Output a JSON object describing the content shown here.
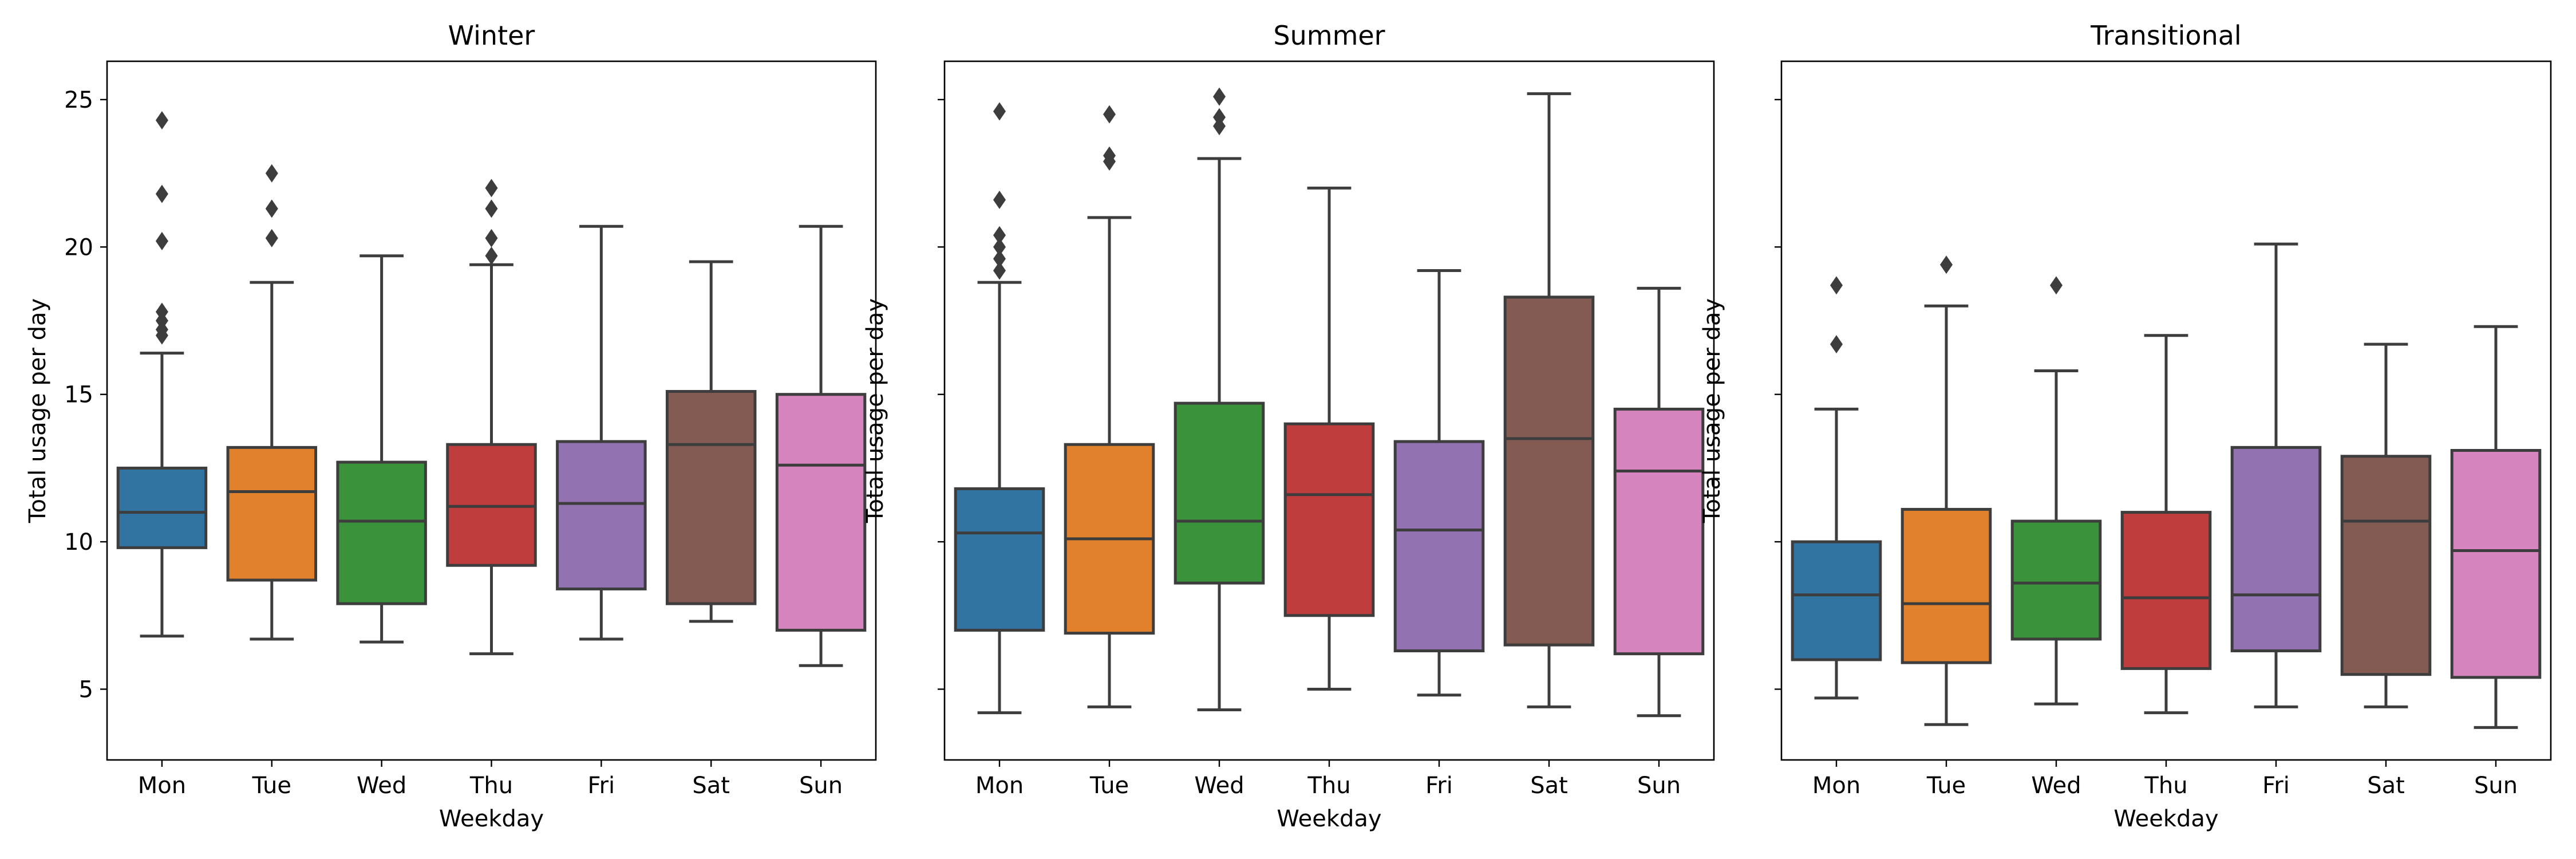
{
  "chart_data": [
    {
      "type": "box",
      "title": "Winter",
      "xlabel": "Weekday",
      "ylabel": "Total usage per day",
      "ylim": [
        2.6,
        26.3
      ],
      "yticks": [
        5,
        10,
        15,
        20,
        25
      ],
      "show_ytick_labels": true,
      "categories": [
        "Mon",
        "Tue",
        "Wed",
        "Thu",
        "Fri",
        "Sat",
        "Sun"
      ],
      "boxes": [
        {
          "min": 6.8,
          "q1": 9.8,
          "median": 11.0,
          "q3": 12.5,
          "max": 16.4,
          "fliers": [
            17.0,
            17.2,
            17.5,
            17.8,
            20.2,
            21.8,
            24.3
          ]
        },
        {
          "min": 6.7,
          "q1": 8.7,
          "median": 11.7,
          "q3": 13.2,
          "max": 18.8,
          "fliers": [
            20.3,
            21.3,
            22.5
          ]
        },
        {
          "min": 6.6,
          "q1": 7.9,
          "median": 10.7,
          "q3": 12.7,
          "max": 19.7,
          "fliers": []
        },
        {
          "min": 6.2,
          "q1": 9.2,
          "median": 11.2,
          "q3": 13.3,
          "max": 19.4,
          "fliers": [
            19.7,
            20.3,
            21.3,
            22.0
          ]
        },
        {
          "min": 6.7,
          "q1": 8.4,
          "median": 11.3,
          "q3": 13.4,
          "max": 20.7,
          "fliers": []
        },
        {
          "min": 7.3,
          "q1": 7.9,
          "median": 13.3,
          "q3": 15.1,
          "max": 19.5,
          "fliers": []
        },
        {
          "min": 5.8,
          "q1": 7.0,
          "median": 12.6,
          "q3": 15.0,
          "max": 20.7,
          "fliers": []
        }
      ]
    },
    {
      "type": "box",
      "title": "Summer",
      "xlabel": "Weekday",
      "ylabel": "Total usage per day",
      "ylim": [
        2.6,
        26.3
      ],
      "yticks": [
        5,
        10,
        15,
        20,
        25
      ],
      "show_ytick_labels": false,
      "categories": [
        "Mon",
        "Tue",
        "Wed",
        "Thu",
        "Fri",
        "Sat",
        "Sun"
      ],
      "boxes": [
        {
          "min": 4.2,
          "q1": 7.0,
          "median": 10.3,
          "q3": 11.8,
          "max": 18.8,
          "fliers": [
            19.2,
            19.6,
            20.0,
            20.4,
            21.6,
            24.6
          ]
        },
        {
          "min": 4.4,
          "q1": 6.9,
          "median": 10.1,
          "q3": 13.3,
          "max": 21.0,
          "fliers": [
            22.9,
            23.1,
            24.5
          ]
        },
        {
          "min": 4.3,
          "q1": 8.6,
          "median": 10.7,
          "q3": 14.7,
          "max": 23.0,
          "fliers": [
            24.1,
            24.4,
            25.1
          ]
        },
        {
          "min": 5.0,
          "q1": 7.5,
          "median": 11.6,
          "q3": 14.0,
          "max": 22.0,
          "fliers": []
        },
        {
          "min": 4.8,
          "q1": 6.3,
          "median": 10.4,
          "q3": 13.4,
          "max": 19.2,
          "fliers": []
        },
        {
          "min": 4.4,
          "q1": 6.5,
          "median": 13.5,
          "q3": 18.3,
          "max": 25.2,
          "fliers": []
        },
        {
          "min": 4.1,
          "q1": 6.2,
          "median": 12.4,
          "q3": 14.5,
          "max": 18.6,
          "fliers": []
        }
      ]
    },
    {
      "type": "box",
      "title": "Transitional",
      "xlabel": "Weekday",
      "ylabel": "Total usage per day",
      "ylim": [
        2.6,
        26.3
      ],
      "yticks": [
        5,
        10,
        15,
        20,
        25
      ],
      "show_ytick_labels": false,
      "categories": [
        "Mon",
        "Tue",
        "Wed",
        "Thu",
        "Fri",
        "Sat",
        "Sun"
      ],
      "boxes": [
        {
          "min": 4.7,
          "q1": 6.0,
          "median": 8.2,
          "q3": 10.0,
          "max": 14.5,
          "fliers": [
            16.7,
            18.7
          ]
        },
        {
          "min": 3.8,
          "q1": 5.9,
          "median": 7.9,
          "q3": 11.1,
          "max": 18.0,
          "fliers": [
            19.4
          ]
        },
        {
          "min": 4.5,
          "q1": 6.7,
          "median": 8.6,
          "q3": 10.7,
          "max": 15.8,
          "fliers": [
            18.7
          ]
        },
        {
          "min": 4.2,
          "q1": 5.7,
          "median": 8.1,
          "q3": 11.0,
          "max": 17.0,
          "fliers": []
        },
        {
          "min": 4.4,
          "q1": 6.3,
          "median": 8.2,
          "q3": 13.2,
          "max": 20.1,
          "fliers": []
        },
        {
          "min": 4.4,
          "q1": 5.5,
          "median": 10.7,
          "q3": 12.9,
          "max": 16.7,
          "fliers": []
        },
        {
          "min": 3.7,
          "q1": 5.4,
          "median": 9.7,
          "q3": 13.1,
          "max": 17.3,
          "fliers": []
        }
      ]
    }
  ],
  "palette": [
    "#3274a1",
    "#e1812c",
    "#3a923a",
    "#c03d3e",
    "#9372b2",
    "#845b53",
    "#d684bd"
  ]
}
